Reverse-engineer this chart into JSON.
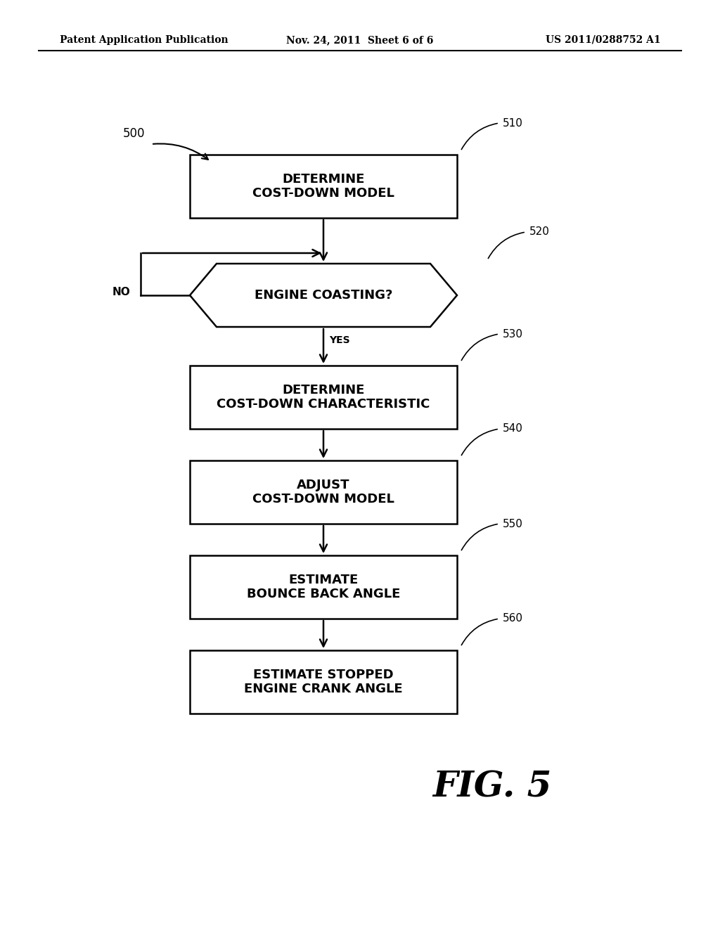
{
  "header_left": "Patent Application Publication",
  "header_center": "Nov. 24, 2011  Sheet 6 of 6",
  "header_right": "US 2011/0288752 A1",
  "fig_caption": "FIG. 5",
  "label_500": "500",
  "boxes": [
    {
      "id": "510",
      "text": "DETERMINE\nCOST-DOWN MODEL"
    },
    {
      "id": "520",
      "text": "ENGINE COASTING?",
      "type": "hex"
    },
    {
      "id": "530",
      "text": "DETERMINE\nCOST-DOWN CHARACTERISTIC"
    },
    {
      "id": "540",
      "text": "ADJUST\nCOST-DOWN MODEL"
    },
    {
      "id": "550",
      "text": "ESTIMATE\nBOUNCE BACK ANGLE"
    },
    {
      "id": "560",
      "text": "ESTIMATE STOPPED\nENGINE CRANK ANGLE"
    }
  ],
  "yes_label": "YES",
  "no_label": "NO",
  "bg_color": "#ffffff"
}
